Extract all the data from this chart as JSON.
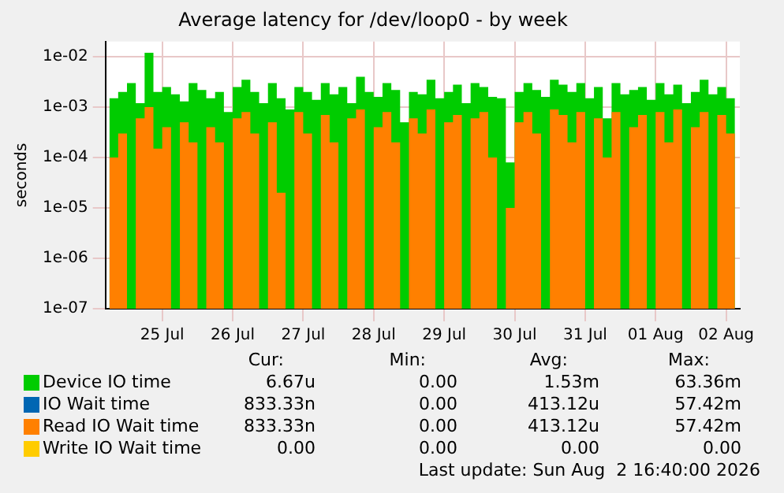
{
  "chart_data": {
    "type": "area",
    "title": "Average latency for /dev/loop0 - by week",
    "ylabel": "seconds",
    "log": "y",
    "grid": true,
    "legend": "bottom",
    "x": [
      "2026-07-24T18:00",
      "2026-07-24T21:00",
      "2026-07-25T00:00",
      "2026-07-25T03:00",
      "2026-07-25T06:00",
      "2026-07-25T09:00",
      "2026-07-25T12:00",
      "2026-07-25T15:00",
      "2026-07-25T18:00",
      "2026-07-25T21:00",
      "2026-07-26T00:00",
      "2026-07-26T03:00",
      "2026-07-26T06:00",
      "2026-07-26T09:00",
      "2026-07-26T12:00",
      "2026-07-26T15:00",
      "2026-07-26T18:00",
      "2026-07-26T21:00",
      "2026-07-27T00:00",
      "2026-07-27T03:00",
      "2026-07-27T06:00",
      "2026-07-27T09:00",
      "2026-07-27T12:00",
      "2026-07-27T15:00",
      "2026-07-27T18:00",
      "2026-07-27T21:00",
      "2026-07-28T00:00",
      "2026-07-28T03:00",
      "2026-07-28T06:00",
      "2026-07-28T09:00",
      "2026-07-28T12:00",
      "2026-07-28T15:00",
      "2026-07-28T18:00",
      "2026-07-28T21:00",
      "2026-07-29T00:00",
      "2026-07-29T03:00",
      "2026-07-29T06:00",
      "2026-07-29T09:00",
      "2026-07-29T12:00",
      "2026-07-29T15:00",
      "2026-07-29T18:00",
      "2026-07-29T21:00",
      "2026-07-30T00:00",
      "2026-07-30T03:00",
      "2026-07-30T06:00",
      "2026-07-30T09:00",
      "2026-07-30T12:00",
      "2026-07-30T15:00",
      "2026-07-30T18:00",
      "2026-07-30T21:00",
      "2026-07-31T00:00",
      "2026-07-31T03:00",
      "2026-07-31T06:00",
      "2026-07-31T09:00",
      "2026-07-31T12:00",
      "2026-07-31T15:00",
      "2026-07-31T18:00",
      "2026-07-31T21:00",
      "2026-08-01T00:00",
      "2026-08-01T03:00",
      "2026-08-01T06:00",
      "2026-08-01T09:00",
      "2026-08-01T12:00",
      "2026-08-01T15:00",
      "2026-08-01T18:00",
      "2026-08-01T21:00",
      "2026-08-02T00:00",
      "2026-08-02T03:00",
      "2026-08-02T06:00",
      "2026-08-02T09:00",
      "2026-08-02T12:00",
      "2026-08-02T15:00"
    ],
    "xlim": [
      "2026-07-24T16:40",
      "2026-08-02T16:40"
    ],
    "xticks": [
      {
        "value": "2026-07-25T12:00",
        "label": "25 Jul"
      },
      {
        "value": "2026-07-26T12:00",
        "label": "26 Jul"
      },
      {
        "value": "2026-07-27T12:00",
        "label": "27 Jul"
      },
      {
        "value": "2026-07-28T12:00",
        "label": "28 Jul"
      },
      {
        "value": "2026-07-29T12:00",
        "label": "29 Jul"
      },
      {
        "value": "2026-07-30T12:00",
        "label": "30 Jul"
      },
      {
        "value": "2026-07-31T12:00",
        "label": "31 Jul"
      },
      {
        "value": "2026-08-01T12:00",
        "label": "01 Aug"
      },
      {
        "value": "2026-08-02T12:00",
        "label": "02 Aug"
      }
    ],
    "ylim": [
      1e-07,
      0.02
    ],
    "yticks": [
      {
        "value": 1e-07,
        "label": "1e-07"
      },
      {
        "value": 1e-06,
        "label": "1e-06"
      },
      {
        "value": 1e-05,
        "label": "1e-05"
      },
      {
        "value": 0.0001,
        "label": "1e-04"
      },
      {
        "value": 0.001,
        "label": "1e-03"
      },
      {
        "value": 0.01,
        "label": "1e-02"
      }
    ],
    "series": [
      {
        "name": "Device IO time",
        "color": "#00cc00",
        "values": [
          0.0015,
          0.002,
          0.003,
          0.0012,
          0.012,
          0.002,
          0.0025,
          0.0018,
          0.0013,
          0.003,
          0.0022,
          0.0015,
          0.002,
          0.0008,
          0.0025,
          0.0035,
          0.002,
          0.0012,
          0.003,
          0.0015,
          0.0009,
          0.0025,
          0.002,
          0.0014,
          0.003,
          0.0018,
          0.0025,
          0.0012,
          0.004,
          0.002,
          0.0016,
          0.003,
          0.0022,
          0.0005,
          0.002,
          0.0018,
          0.0035,
          0.0015,
          0.002,
          0.0028,
          0.0012,
          0.003,
          0.0025,
          0.0016,
          0.0015,
          8e-05,
          0.002,
          0.003,
          0.0022,
          0.0016,
          0.0035,
          0.0028,
          0.002,
          0.003,
          0.0015,
          0.0025,
          0.0006,
          0.003,
          0.0018,
          0.0022,
          0.0025,
          0.0014,
          0.003,
          0.0018,
          0.0028,
          0.0012,
          0.002,
          0.0035,
          0.0018,
          0.0025,
          0.0015,
          0.0009
        ]
      },
      {
        "name": "IO Wait time",
        "color": "#0066b3",
        "values": [
          null,
          null,
          null,
          null,
          null,
          null,
          null,
          null,
          null,
          null,
          null,
          null,
          null,
          null,
          null,
          null,
          null,
          null,
          null,
          null,
          null,
          null,
          null,
          null,
          null,
          null,
          null,
          null,
          null,
          null,
          null,
          null,
          null,
          null,
          null,
          null,
          null,
          null,
          null,
          null,
          null,
          null,
          null,
          null,
          null,
          null,
          null,
          null,
          null,
          null,
          null,
          null,
          null,
          null,
          null,
          null,
          null,
          null,
          null,
          null,
          null,
          null,
          null,
          null,
          null,
          null,
          null,
          null,
          null,
          null,
          null,
          null
        ]
      },
      {
        "name": "Read IO Wait time",
        "color": "#ff8000",
        "values": [
          0.0001,
          0.0003,
          1e-07,
          0.0006,
          0.001,
          0.00015,
          0.0004,
          1e-07,
          0.0005,
          0.0002,
          1e-07,
          0.0004,
          0.0002,
          1e-07,
          0.0006,
          0.0008,
          0.0003,
          1e-07,
          0.0005,
          2e-05,
          1e-07,
          0.0008,
          0.0003,
          1e-07,
          0.0007,
          0.0002,
          1e-07,
          0.0006,
          0.0009,
          1e-07,
          0.0004,
          0.0008,
          0.0002,
          1e-07,
          0.0006,
          0.0003,
          0.0009,
          1e-07,
          0.0005,
          0.0007,
          1e-07,
          0.0006,
          0.0008,
          0.0001,
          1e-07,
          1e-05,
          0.0005,
          0.0008,
          0.0003,
          1e-07,
          0.0009,
          0.0007,
          0.0002,
          0.0008,
          1e-07,
          0.0006,
          0.0001,
          0.0008,
          1e-07,
          0.0004,
          0.0007,
          1e-07,
          0.0008,
          0.0002,
          0.0009,
          1e-07,
          0.0004,
          0.0008,
          1e-07,
          0.0007,
          0.0003,
          5e-05
        ]
      },
      {
        "name": "Write IO Wait time",
        "color": "#ffcc00",
        "values": [
          null,
          null,
          null,
          null,
          null,
          null,
          null,
          null,
          null,
          null,
          null,
          null,
          null,
          null,
          null,
          null,
          null,
          null,
          null,
          null,
          null,
          null,
          null,
          null,
          null,
          null,
          null,
          null,
          null,
          null,
          null,
          null,
          null,
          null,
          null,
          null,
          null,
          null,
          null,
          null,
          null,
          null,
          null,
          null,
          null,
          null,
          null,
          null,
          null,
          null,
          null,
          null,
          null,
          null,
          null,
          null,
          null,
          null,
          null,
          null,
          null,
          null,
          null,
          null,
          null,
          null,
          null,
          null,
          null,
          null,
          null,
          null
        ]
      }
    ],
    "annotations": [
      "Cur:",
      "Min:",
      "Avg:",
      "Max:",
      "6.67u",
      "0.00",
      "1.53m",
      "63.36m",
      "833.33n",
      "0.00",
      "413.12u",
      "57.42m",
      "833.33n",
      "0.00",
      "413.12u",
      "57.42m",
      "0.00",
      "0.00",
      "0.00",
      "0.00",
      "Last update: Sun Aug  2 16:40:00 2026"
    ]
  }
}
